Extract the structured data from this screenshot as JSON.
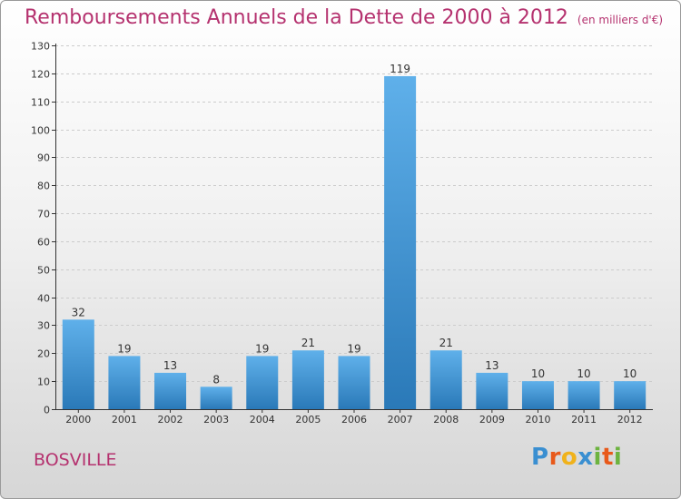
{
  "header": {
    "title": "Remboursements Annuels de la Dette de 2000 à 2012",
    "unit": "(en milliers d'€)"
  },
  "footer": {
    "city": "BOSVILLE",
    "logo_letters": [
      "P",
      "r",
      "o",
      "x",
      "i",
      "t",
      "i"
    ],
    "logo_colors": [
      "#3a8fd1",
      "#e8591a",
      "#f0b21b",
      "#3a8fd1",
      "#6db33f",
      "#e8591a",
      "#6db33f"
    ]
  },
  "colors": {
    "title": "#b5326f",
    "bar_top": "#5fb0ea",
    "bar_bottom": "#2a79b8",
    "axis": "#333333",
    "grid": "#cccccc"
  },
  "chart_data": {
    "type": "bar",
    "title": "Remboursements Annuels de la Dette de 2000 à 2012",
    "categories": [
      "2000",
      "2001",
      "2002",
      "2003",
      "2004",
      "2005",
      "2006",
      "2007",
      "2008",
      "2009",
      "2010",
      "2011",
      "2012"
    ],
    "values": [
      32,
      19,
      13,
      8,
      19,
      21,
      19,
      119,
      21,
      13,
      10,
      10,
      10
    ],
    "ylim": [
      0,
      130
    ],
    "yticks": [
      0,
      10,
      20,
      30,
      40,
      50,
      60,
      70,
      80,
      90,
      100,
      110,
      120,
      130
    ],
    "grid": true,
    "data_labels": true
  }
}
